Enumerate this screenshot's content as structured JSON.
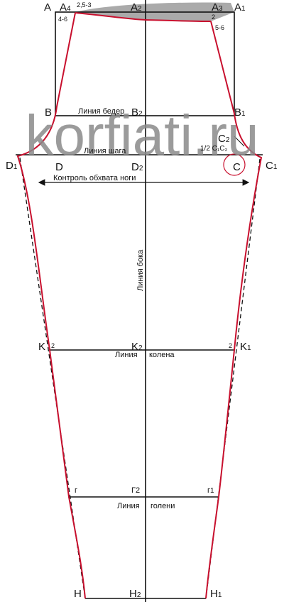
{
  "watermark": "korfiati.ru",
  "points": [
    {
      "label": "A"
    },
    {
      "label": "A",
      "sub": "4"
    },
    {
      "label": "A",
      "sub": "2"
    },
    {
      "label": "A",
      "sub": "3"
    },
    {
      "label": "A",
      "sub": "1"
    },
    {
      "label": "B"
    },
    {
      "label": "B",
      "sub": "2"
    },
    {
      "label": "B",
      "sub": "1"
    },
    {
      "label": "C",
      "sub": "2"
    },
    {
      "label": "D",
      "sub": "1"
    },
    {
      "label": "D"
    },
    {
      "label": "D",
      "sub": "2"
    },
    {
      "label": "C"
    },
    {
      "label": "C",
      "sub": "1"
    },
    {
      "label": "K"
    },
    {
      "label": "K",
      "sub": "2"
    },
    {
      "label": "K",
      "sub": "1"
    },
    {
      "label": "г"
    },
    {
      "label": "Г2"
    },
    {
      "label": "г",
      "sub": "1"
    },
    {
      "label": "H"
    },
    {
      "label": "H",
      "sub": "2"
    },
    {
      "label": "H",
      "sub": "1"
    }
  ],
  "measures": [
    "2,5-3",
    "2",
    "4-6",
    "5-6",
    "1/2 C₁C₂",
    "2",
    "2"
  ],
  "lines": {
    "hip": "Линия бедер",
    "crotch": "Линия шага",
    "control": "Контроль обхвата ноги",
    "side": "Линия бока",
    "knee": [
      "Линия",
      "колена"
    ],
    "shin": [
      "Линия",
      "голени"
    ]
  }
}
